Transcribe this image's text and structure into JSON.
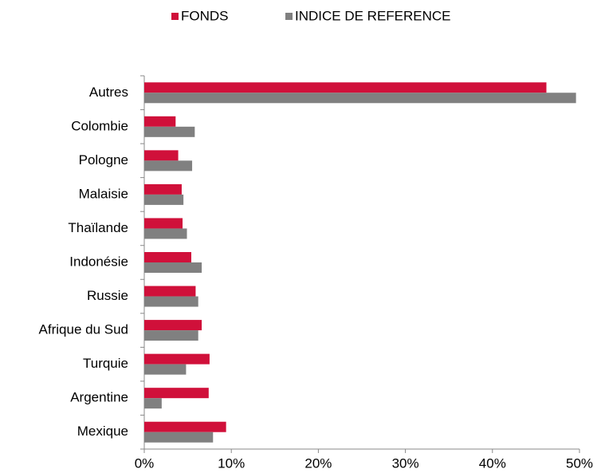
{
  "chart_data": {
    "type": "bar",
    "orientation": "horizontal",
    "categories": [
      "Autres",
      "Colombie",
      "Pologne",
      "Malaisie",
      "Thaïlande",
      "Indonésie",
      "Russie",
      "Afrique du Sud",
      "Turquie",
      "Argentine",
      "Mexique"
    ],
    "series": [
      {
        "name": "FONDS",
        "color": "#d0103a",
        "values": [
          46.2,
          3.6,
          3.9,
          4.3,
          4.4,
          5.4,
          5.9,
          6.6,
          7.5,
          7.4,
          9.4
        ]
      },
      {
        "name": "INDICE DE REFERENCE",
        "color": "#808080",
        "values": [
          49.6,
          5.8,
          5.5,
          4.5,
          4.9,
          6.6,
          6.2,
          6.2,
          4.8,
          2.0,
          7.9
        ]
      }
    ],
    "xlim": [
      0,
      50
    ],
    "xticks": [
      {
        "value": 0,
        "label": "0%"
      },
      {
        "value": 10,
        "label": "10%"
      },
      {
        "value": 20,
        "label": "20%"
      },
      {
        "value": 30,
        "label": "30%"
      },
      {
        "value": 40,
        "label": "40%"
      },
      {
        "value": 50,
        "label": "50%"
      }
    ],
    "legend": "top"
  }
}
